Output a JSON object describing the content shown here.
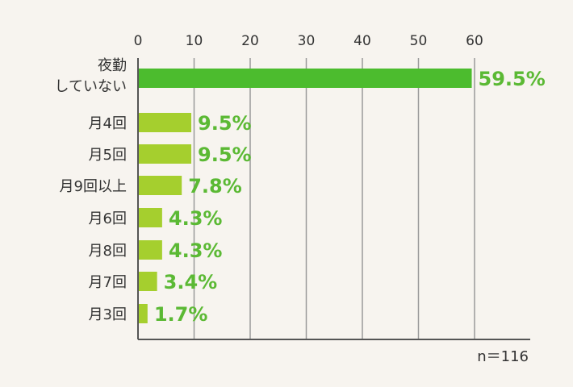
{
  "chart_data": {
    "type": "bar",
    "orientation": "horizontal",
    "categories": [
      [
        "夜勤",
        "していない"
      ],
      [
        "月4回"
      ],
      [
        "月5回"
      ],
      [
        "月9回以上"
      ],
      [
        "月6回"
      ],
      [
        "月8回"
      ],
      [
        "月7回"
      ],
      [
        "月3回"
      ]
    ],
    "values": [
      59.5,
      9.5,
      9.5,
      7.8,
      4.3,
      4.3,
      3.4,
      1.7
    ],
    "data_labels": [
      "59.5%",
      "9.5%",
      "9.5%",
      "7.8%",
      "4.3%",
      "4.3%",
      "3.4%",
      "1.7%"
    ],
    "xlim": [
      0,
      70
    ],
    "xticks": [
      0,
      10,
      20,
      30,
      40,
      50,
      60
    ],
    "tick_axis_position": "top",
    "grid": true,
    "colors": {
      "highlight_bar": "#4cbc2e",
      "bar": "#a5cf2e",
      "label": "#5bb934",
      "grid": "#9a9a9a",
      "axis": "#555555"
    },
    "note": "n＝116"
  }
}
